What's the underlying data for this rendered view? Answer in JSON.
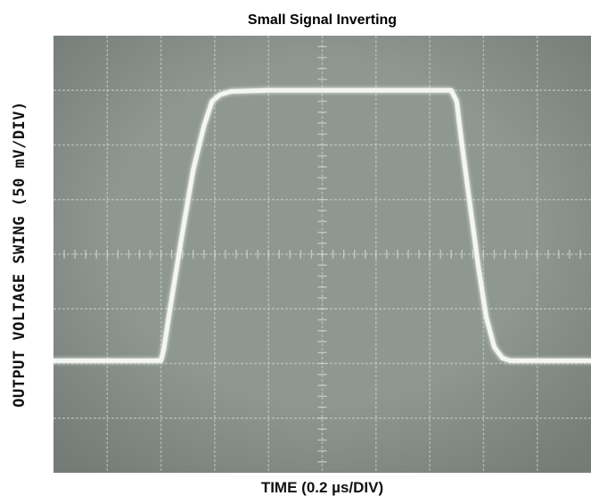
{
  "title": "Small Signal Inverting",
  "chart_data": {
    "type": "line",
    "title": "Small Signal Inverting",
    "xlabel": "TIME (0.2 µs/DIV)",
    "ylabel": "OUTPUT VOLTAGE SWING (50 mV/DIV)",
    "xlim": [
      0,
      10
    ],
    "ylim": [
      0,
      8
    ],
    "grid": true,
    "colors": {
      "screen": "#8f9792",
      "grid": "#d6dcd7",
      "trace": "#f4f6f3"
    },
    "series": [
      {
        "x": [
          0,
          2.0,
          2.05,
          2.2,
          2.4,
          2.6,
          2.8,
          2.95,
          3.1,
          3.3,
          4.0,
          5.0,
          6.0,
          7.0,
          7.4,
          7.5,
          7.6,
          7.75,
          7.9,
          8.05,
          8.2,
          8.35,
          8.5,
          9.0,
          10.0
        ],
        "y": [
          2.05,
          2.05,
          2.25,
          3.2,
          4.4,
          5.55,
          6.35,
          6.8,
          6.92,
          6.98,
          7.0,
          7.0,
          7.0,
          7.0,
          7.0,
          6.8,
          6.0,
          4.9,
          3.8,
          2.85,
          2.3,
          2.1,
          2.05,
          2.05,
          2.05
        ]
      }
    ]
  }
}
